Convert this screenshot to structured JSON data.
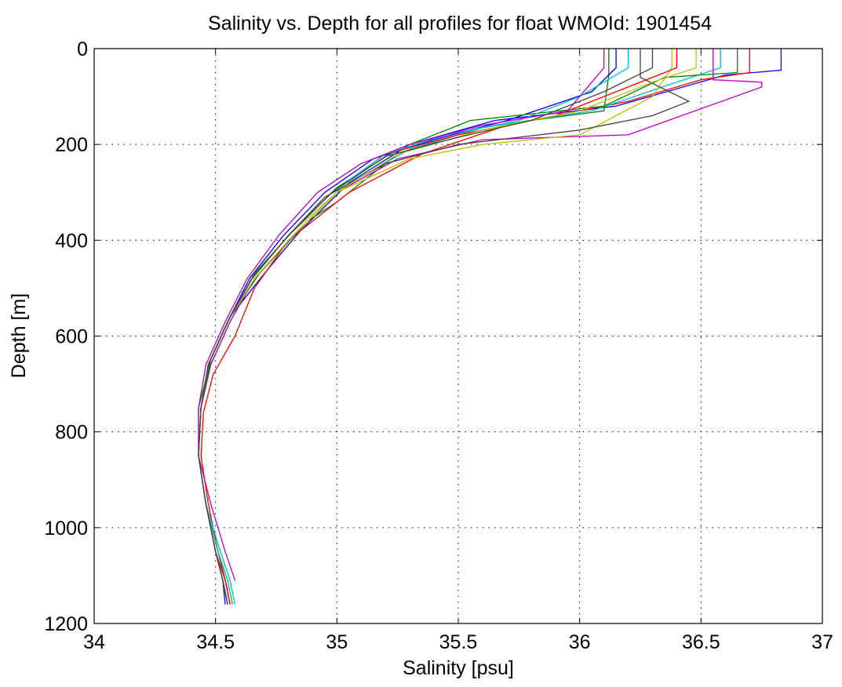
{
  "chart_data": {
    "type": "line",
    "title": "Salinity vs. Depth for all profiles for float WMOId: 1901454",
    "xlabel": "Salinity [psu]",
    "ylabel": "Depth [m]",
    "xlim": [
      34,
      37
    ],
    "ylim": [
      0,
      1200
    ],
    "y_reversed": true,
    "grid": true,
    "legend": "none",
    "x_ticks": [
      "34",
      "34.5",
      "35",
      "35.5",
      "36",
      "36.5",
      "37"
    ],
    "y_ticks": [
      "0",
      "200",
      "400",
      "600",
      "800",
      "1000",
      "1200"
    ],
    "colors": [
      "#0000ff",
      "#008000",
      "#ff0000",
      "#00bfbf",
      "#bf00bf",
      "#bfbf00",
      "#404040"
    ],
    "series": [
      {
        "color": "#0000ff",
        "x": [
          36.83,
          36.83,
          36.6,
          36.15,
          35.65,
          35.3,
          35.05,
          34.85,
          34.7,
          34.56,
          34.48,
          34.44,
          34.43,
          34.46,
          34.5,
          34.53,
          34.54
        ],
        "y": [
          0,
          45,
          55,
          120,
          150,
          200,
          280,
          380,
          470,
          560,
          650,
          750,
          850,
          950,
          1050,
          1110,
          1160
        ]
      },
      {
        "color": "#008000",
        "x": [
          36.12,
          36.12,
          36.1,
          35.8,
          35.5,
          35.25,
          35.0,
          34.88,
          34.68,
          34.56,
          34.48,
          34.43,
          34.43,
          34.46,
          34.5,
          34.53,
          34.55
        ],
        "y": [
          0,
          55,
          130,
          150,
          180,
          220,
          320,
          360,
          470,
          560,
          650,
          750,
          850,
          950,
          1050,
          1110,
          1160
        ]
      },
      {
        "color": "#ff0000",
        "x": [
          36.7,
          36.7,
          36.5,
          36.2,
          35.7,
          35.35,
          35.05,
          34.8,
          34.66,
          34.58,
          34.49,
          34.45,
          34.44,
          34.47,
          34.51,
          34.54,
          34.56
        ],
        "y": [
          0,
          50,
          65,
          110,
          160,
          220,
          300,
          400,
          500,
          600,
          680,
          760,
          850,
          950,
          1050,
          1110,
          1160
        ]
      },
      {
        "color": "#00bfbf",
        "x": [
          36.58,
          36.58,
          36.4,
          36.05,
          35.6,
          35.3,
          35.02,
          34.82,
          34.66,
          34.56,
          34.48,
          34.44,
          34.43,
          34.46,
          34.52,
          34.56,
          34.58
        ],
        "y": [
          0,
          40,
          70,
          130,
          165,
          210,
          290,
          390,
          480,
          570,
          660,
          750,
          850,
          950,
          1050,
          1110,
          1160
        ]
      },
      {
        "color": "#bf00bf",
        "x": [
          36.55,
          36.55,
          36.75,
          36.75,
          36.2,
          35.6,
          35.25,
          35.0,
          34.82,
          34.66,
          34.56,
          34.48,
          34.44,
          34.43,
          34.48,
          34.54,
          34.58
        ],
        "y": [
          0,
          65,
          70,
          80,
          180,
          190,
          230,
          300,
          390,
          480,
          570,
          660,
          750,
          850,
          950,
          1050,
          1110
        ]
      },
      {
        "color": "#bfbf00",
        "x": [
          36.38,
          36.38,
          36.3,
          36.0,
          35.6,
          35.3,
          35.0,
          34.8,
          34.65,
          34.55,
          34.47,
          34.44,
          34.43,
          34.46,
          34.51,
          34.55,
          34.57
        ],
        "y": [
          0,
          40,
          100,
          180,
          200,
          230,
          300,
          390,
          480,
          570,
          660,
          750,
          850,
          950,
          1050,
          1110,
          1160
        ]
      },
      {
        "color": "#404040",
        "x": [
          36.25,
          36.25,
          36.45,
          36.3,
          36.0,
          35.5,
          35.2,
          34.95,
          34.8,
          34.65,
          34.55,
          34.47,
          34.44,
          34.43,
          34.46,
          34.51,
          34.55
        ],
        "y": [
          0,
          60,
          110,
          140,
          170,
          200,
          240,
          310,
          390,
          480,
          570,
          660,
          750,
          850,
          950,
          1050,
          1130
        ]
      },
      {
        "color": "#0000ff",
        "x": [
          36.15,
          36.15,
          36.05,
          35.7,
          35.4,
          35.15,
          34.95,
          34.78,
          34.64,
          34.55,
          34.47,
          34.44,
          34.43,
          34.46,
          34.5,
          34.53,
          34.55
        ],
        "y": [
          0,
          40,
          90,
          150,
          190,
          230,
          300,
          390,
          480,
          570,
          660,
          750,
          850,
          950,
          1050,
          1110,
          1160
        ]
      },
      {
        "color": "#008000",
        "x": [
          36.65,
          36.65,
          36.35,
          36.1,
          35.55,
          35.25,
          35.0,
          34.82,
          34.66,
          34.56,
          34.48,
          34.44,
          34.43,
          34.46,
          34.5,
          34.53,
          34.55
        ],
        "y": [
          0,
          50,
          60,
          120,
          150,
          210,
          290,
          380,
          470,
          560,
          650,
          750,
          850,
          950,
          1050,
          1110,
          1160
        ]
      },
      {
        "color": "#ff0000",
        "x": [
          36.4,
          36.4,
          36.2,
          35.9,
          35.5,
          35.2,
          34.98,
          34.8,
          34.65,
          34.55,
          34.47,
          34.44,
          34.43,
          34.46,
          34.5,
          34.54,
          34.56
        ],
        "y": [
          0,
          40,
          80,
          140,
          180,
          220,
          300,
          390,
          480,
          570,
          660,
          750,
          850,
          950,
          1050,
          1110,
          1160
        ]
      },
      {
        "color": "#00bfbf",
        "x": [
          36.2,
          36.2,
          36.0,
          35.75,
          35.45,
          35.2,
          34.98,
          34.8,
          34.65,
          34.55,
          34.47,
          34.44,
          34.43,
          34.46,
          34.51,
          34.55,
          34.57
        ],
        "y": [
          0,
          40,
          100,
          150,
          180,
          220,
          300,
          390,
          480,
          570,
          660,
          750,
          850,
          950,
          1050,
          1110,
          1160
        ]
      },
      {
        "color": "#bf00bf",
        "x": [
          36.1,
          36.1,
          35.95,
          35.6,
          35.3,
          35.1,
          34.92,
          34.76,
          34.63,
          34.54,
          34.46,
          34.43,
          34.43,
          34.46,
          34.5,
          34.53,
          34.55
        ],
        "y": [
          0,
          40,
          130,
          160,
          200,
          240,
          300,
          390,
          480,
          570,
          660,
          750,
          850,
          950,
          1050,
          1110,
          1160
        ]
      },
      {
        "color": "#bfbf00",
        "x": [
          36.48,
          36.48,
          36.3,
          36.0,
          35.6,
          35.25,
          35.0,
          34.82,
          34.66,
          34.55,
          34.47,
          34.44,
          34.43,
          34.46,
          34.5,
          34.53,
          34.55
        ],
        "y": [
          0,
          40,
          70,
          130,
          170,
          220,
          300,
          390,
          480,
          570,
          660,
          750,
          850,
          950,
          1050,
          1110,
          1160
        ]
      },
      {
        "color": "#404040",
        "x": [
          36.3,
          36.3,
          36.1,
          35.8,
          35.5,
          35.2,
          34.98,
          34.8,
          34.65,
          34.55,
          34.47,
          34.44,
          34.43,
          34.46,
          34.5,
          34.53,
          34.55
        ],
        "y": [
          0,
          40,
          90,
          150,
          185,
          225,
          300,
          390,
          480,
          570,
          660,
          750,
          850,
          950,
          1050,
          1110,
          1160
        ]
      }
    ]
  }
}
